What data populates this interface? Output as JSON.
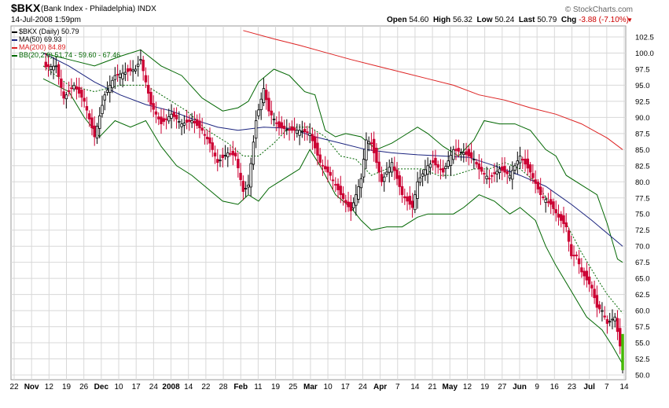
{
  "header": {
    "symbol": "$BKX",
    "description": "(Bank Index - Philadelphia)",
    "exchange": "INDX",
    "date": "14-Jul-2008 1:59pm",
    "copyright": "© StockCharts.com",
    "quote": {
      "open_label": "Open",
      "open": "54.60",
      "high_label": "High",
      "high": "56.32",
      "low_label": "Low",
      "low": "50.24",
      "last_label": "Last",
      "last": "50.79",
      "chg_label": "Chg",
      "chg": "-3.88 (-7.10%)"
    }
  },
  "legend": {
    "price": "$BKX (Daily) 50.79",
    "ma50": "MA(50) 69.93",
    "ma200": "MA(200) 84.89",
    "bb": "BB(20,2.0) 51.74 - 59.60 - 67.46"
  },
  "colors": {
    "up_candle": "#000000",
    "down_candle": "#cc0033",
    "last_candle": "#44bb00",
    "ma50": "#1a237e",
    "ma200": "#dd2222",
    "bb": "#006600",
    "grid": "#d8d8d8",
    "legend_price": "#000000"
  },
  "chart_data": {
    "type": "candlestick",
    "title": "$BKX (Bank Index - Philadelphia)",
    "ylim": [
      50,
      102.5
    ],
    "y_ticks": [
      "102.5",
      "100.0",
      "97.5",
      "95.0",
      "92.5",
      "90.0",
      "87.5",
      "85.0",
      "82.5",
      "80.0",
      "77.5",
      "75.0",
      "72.5",
      "70.0",
      "67.5",
      "65.0",
      "62.5",
      "60.0",
      "57.5",
      "55.0",
      "52.5",
      "50.0"
    ],
    "x_labels": [
      {
        "label": "22",
        "bold": false
      },
      {
        "label": "Nov",
        "bold": true
      },
      {
        "label": "12",
        "bold": false
      },
      {
        "label": "19",
        "bold": false
      },
      {
        "label": "26",
        "bold": false
      },
      {
        "label": "Dec",
        "bold": true
      },
      {
        "label": "10",
        "bold": false
      },
      {
        "label": "17",
        "bold": false
      },
      {
        "label": "24",
        "bold": false
      },
      {
        "label": "2008",
        "bold": true
      },
      {
        "label": "14",
        "bold": false
      },
      {
        "label": "22",
        "bold": false
      },
      {
        "label": "28",
        "bold": false
      },
      {
        "label": "Feb",
        "bold": true
      },
      {
        "label": "11",
        "bold": false
      },
      {
        "label": "19",
        "bold": false
      },
      {
        "label": "25",
        "bold": false
      },
      {
        "label": "Mar",
        "bold": true
      },
      {
        "label": "10",
        "bold": false
      },
      {
        "label": "17",
        "bold": false
      },
      {
        "label": "24",
        "bold": false
      },
      {
        "label": "Apr",
        "bold": true
      },
      {
        "label": "7",
        "bold": false
      },
      {
        "label": "14",
        "bold": false
      },
      {
        "label": "21",
        "bold": false
      },
      {
        "label": "May",
        "bold": true
      },
      {
        "label": "12",
        "bold": false
      },
      {
        "label": "19",
        "bold": false
      },
      {
        "label": "27",
        "bold": false
      },
      {
        "label": "Jun",
        "bold": true
      },
      {
        "label": "9",
        "bold": false
      },
      {
        "label": "16",
        "bold": false
      },
      {
        "label": "23",
        "bold": false
      },
      {
        "label": "Jul",
        "bold": true
      },
      {
        "label": "7",
        "bold": false
      },
      {
        "label": "14",
        "bold": false
      }
    ],
    "price_series": [
      [
        0,
        97.8
      ],
      [
        5,
        98.0
      ],
      [
        8,
        93.0
      ],
      [
        12,
        95.0
      ],
      [
        16,
        92.5
      ],
      [
        20,
        87.0
      ],
      [
        24,
        93.5
      ],
      [
        28,
        96.5
      ],
      [
        32,
        97.0
      ],
      [
        36,
        97.5
      ],
      [
        38,
        99.0
      ],
      [
        42,
        92.0
      ],
      [
        46,
        89.0
      ],
      [
        50,
        90.5
      ],
      [
        54,
        89.0
      ],
      [
        58,
        89.5
      ],
      [
        62,
        88.0
      ],
      [
        65,
        86.0
      ],
      [
        68,
        83.0
      ],
      [
        72,
        84.5
      ],
      [
        75,
        84.0
      ],
      [
        78,
        78.5
      ],
      [
        80,
        79.5
      ],
      [
        83,
        89.5
      ],
      [
        86,
        94.5
      ],
      [
        88,
        91.0
      ],
      [
        92,
        88.5
      ],
      [
        96,
        88.0
      ],
      [
        100,
        88.0
      ],
      [
        104,
        87.5
      ],
      [
        108,
        83.0
      ],
      [
        112,
        81.0
      ],
      [
        116,
        78.0
      ],
      [
        120,
        75.5
      ],
      [
        124,
        80.5
      ],
      [
        126,
        86.5
      ],
      [
        128,
        86.0
      ],
      [
        132,
        80.0
      ],
      [
        136,
        83.0
      ],
      [
        140,
        78.0
      ],
      [
        144,
        76.0
      ],
      [
        146,
        80.0
      ],
      [
        150,
        82.5
      ],
      [
        152,
        83.0
      ],
      [
        156,
        81.5
      ],
      [
        160,
        85.0
      ],
      [
        164,
        84.5
      ],
      [
        168,
        83.5
      ],
      [
        170,
        82.0
      ],
      [
        174,
        80.5
      ],
      [
        178,
        82.0
      ],
      [
        182,
        81.0
      ],
      [
        186,
        84.0
      ],
      [
        190,
        81.5
      ],
      [
        194,
        78.0
      ],
      [
        198,
        76.5
      ],
      [
        201,
        74.5
      ],
      [
        204,
        73.0
      ],
      [
        206,
        68.5
      ],
      [
        208,
        68.5
      ],
      [
        210,
        66.0
      ],
      [
        214,
        63.5
      ],
      [
        216,
        60.5
      ],
      [
        218,
        60.0
      ],
      [
        220,
        58.0
      ],
      [
        223,
        59.0
      ],
      [
        225,
        54.5
      ],
      [
        226,
        50.79
      ]
    ],
    "ma50": [
      [
        0,
        100
      ],
      [
        10,
        98
      ],
      [
        20,
        95.5
      ],
      [
        30,
        93.5
      ],
      [
        40,
        92
      ],
      [
        50,
        91
      ],
      [
        60,
        89.5
      ],
      [
        68,
        88.5
      ],
      [
        76,
        88
      ],
      [
        86,
        88.5
      ],
      [
        96,
        88.3
      ],
      [
        106,
        87
      ],
      [
        116,
        86
      ],
      [
        126,
        85
      ],
      [
        136,
        84.5
      ],
      [
        146,
        84.2
      ],
      [
        156,
        84
      ],
      [
        166,
        83.8
      ],
      [
        176,
        82.5
      ],
      [
        186,
        81
      ],
      [
        196,
        79.3
      ],
      [
        206,
        76.5
      ],
      [
        214,
        74
      ],
      [
        220,
        72
      ],
      [
        226,
        70
      ]
    ],
    "ma200": [
      [
        78,
        103.5
      ],
      [
        90,
        102.2
      ],
      [
        100,
        101.2
      ],
      [
        110,
        100.1
      ],
      [
        120,
        99
      ],
      [
        130,
        98
      ],
      [
        140,
        97
      ],
      [
        150,
        96
      ],
      [
        160,
        95
      ],
      [
        170,
        93.5
      ],
      [
        180,
        92.7
      ],
      [
        190,
        91.5
      ],
      [
        200,
        90.5
      ],
      [
        210,
        89
      ],
      [
        220,
        86.8
      ],
      [
        226,
        85
      ]
    ],
    "bb_upper": [
      [
        0,
        100
      ],
      [
        10,
        99
      ],
      [
        20,
        98
      ],
      [
        30,
        99.5
      ],
      [
        38,
        100.5
      ],
      [
        46,
        98
      ],
      [
        54,
        96.5
      ],
      [
        62,
        93
      ],
      [
        70,
        91
      ],
      [
        76,
        91.5
      ],
      [
        80,
        92.5
      ],
      [
        84,
        95.5
      ],
      [
        90,
        97.5
      ],
      [
        96,
        96.5
      ],
      [
        102,
        94
      ],
      [
        106,
        93.5
      ],
      [
        110,
        88
      ],
      [
        114,
        87
      ],
      [
        118,
        87.5
      ],
      [
        124,
        87
      ],
      [
        130,
        85
      ],
      [
        136,
        86
      ],
      [
        140,
        87
      ],
      [
        146,
        88.5
      ],
      [
        150,
        87.5
      ],
      [
        156,
        85.5
      ],
      [
        162,
        84
      ],
      [
        168,
        86.5
      ],
      [
        172,
        89.5
      ],
      [
        178,
        89
      ],
      [
        184,
        89
      ],
      [
        190,
        88
      ],
      [
        196,
        85
      ],
      [
        200,
        84
      ],
      [
        204,
        81
      ],
      [
        210,
        79.5
      ],
      [
        216,
        78
      ],
      [
        220,
        73.5
      ],
      [
        224,
        68
      ],
      [
        226,
        67.5
      ]
    ],
    "bb_middle": [
      [
        0,
        98
      ],
      [
        10,
        95
      ],
      [
        20,
        94
      ],
      [
        30,
        95
      ],
      [
        40,
        95
      ],
      [
        48,
        93
      ],
      [
        56,
        91
      ],
      [
        64,
        88
      ],
      [
        72,
        86
      ],
      [
        78,
        84
      ],
      [
        84,
        84
      ],
      [
        90,
        86
      ],
      [
        96,
        88.5
      ],
      [
        104,
        88.5
      ],
      [
        110,
        87
      ],
      [
        116,
        84
      ],
      [
        122,
        83.5
      ],
      [
        128,
        81
      ],
      [
        134,
        82
      ],
      [
        140,
        82
      ],
      [
        148,
        82
      ],
      [
        154,
        81
      ],
      [
        160,
        81
      ],
      [
        168,
        82
      ],
      [
        174,
        82
      ],
      [
        180,
        83
      ],
      [
        186,
        82
      ],
      [
        192,
        80
      ],
      [
        198,
        76.5
      ],
      [
        204,
        73.5
      ],
      [
        210,
        69
      ],
      [
        216,
        65
      ],
      [
        220,
        62.5
      ],
      [
        226,
        59.6
      ]
    ],
    "bb_lower": [
      [
        0,
        96
      ],
      [
        10,
        94
      ],
      [
        16,
        90
      ],
      [
        22,
        87
      ],
      [
        28,
        89.5
      ],
      [
        34,
        88.5
      ],
      [
        40,
        89.5
      ],
      [
        46,
        85.5
      ],
      [
        52,
        82.5
      ],
      [
        58,
        81
      ],
      [
        64,
        79
      ],
      [
        70,
        77
      ],
      [
        76,
        76.5
      ],
      [
        80,
        78
      ],
      [
        84,
        77
      ],
      [
        88,
        79
      ],
      [
        94,
        80.5
      ],
      [
        100,
        82
      ],
      [
        104,
        85
      ],
      [
        108,
        82.5
      ],
      [
        114,
        78
      ],
      [
        120,
        76
      ],
      [
        124,
        74
      ],
      [
        128,
        72.5
      ],
      [
        134,
        73
      ],
      [
        140,
        73
      ],
      [
        146,
        74.5
      ],
      [
        150,
        75
      ],
      [
        154,
        75
      ],
      [
        160,
        75
      ],
      [
        164,
        76
      ],
      [
        170,
        78
      ],
      [
        176,
        77
      ],
      [
        182,
        75
      ],
      [
        186,
        76
      ],
      [
        192,
        74
      ],
      [
        196,
        70
      ],
      [
        200,
        67
      ],
      [
        206,
        63
      ],
      [
        212,
        59
      ],
      [
        218,
        57
      ],
      [
        222,
        54.5
      ],
      [
        226,
        51.7
      ]
    ]
  }
}
